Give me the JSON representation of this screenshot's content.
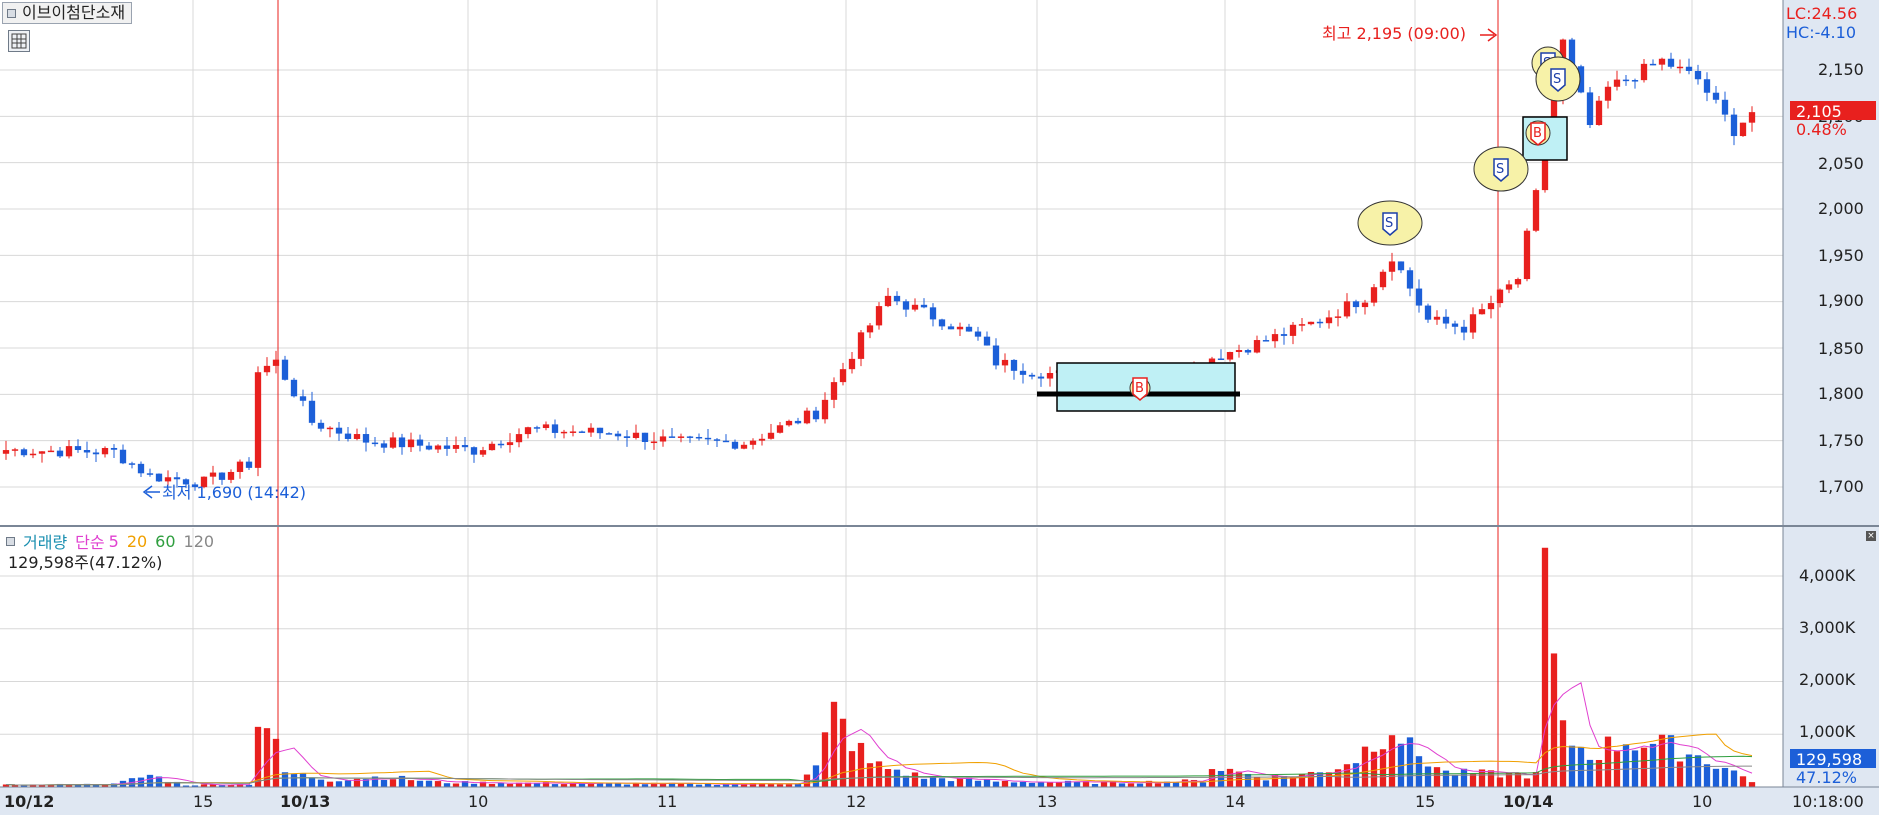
{
  "app": {
    "stock_name": "이브이첨단소재"
  },
  "price_axis": {
    "ticks": [
      "2,150",
      "2,100",
      "2,050",
      "2,000",
      "1,950",
      "1,900",
      "1,850",
      "1,800",
      "1,750",
      "1,700"
    ],
    "lc_label": "LC:24.56",
    "hc_label": "HC:-4.10",
    "current_price": "2,105",
    "current_change": "0.48%"
  },
  "volume_axis": {
    "ticks": [
      "4,000K",
      "3,000K",
      "2,000K",
      "1,000K"
    ],
    "current_volume": "129,598",
    "current_ratio": "47.12%"
  },
  "time_axis": {
    "labels": [
      "10/12",
      "15",
      "10/13",
      "10",
      "11",
      "12",
      "13",
      "14",
      "15",
      "10/14",
      "10"
    ],
    "clock": "10:18:00"
  },
  "annotations": {
    "high_label": "최고 2,195 (09:00)",
    "low_label": "최저 1,690 (14:42)",
    "sell_marker": "S",
    "buy_marker": "B"
  },
  "volume_panel": {
    "title": "거래량",
    "ma_type": "단순",
    "periods": [
      "5",
      "20",
      "60",
      "120"
    ],
    "summary": "129,598주(47.12%)"
  },
  "colors": {
    "up": "#e8201e",
    "down": "#1c5fd8",
    "ma5": "#e040d0",
    "ma20": "#f0a000",
    "ma60": "#2e9e3e",
    "ma120": "#888888",
    "axis_bg": "#dfe7f2",
    "grid": "#d8d8d8",
    "marker_fill": "#f7f2a8",
    "zone_fill": "#bff0f5"
  },
  "chart_data": [
    {
      "type": "candlestick",
      "title": "이브이첨단소재",
      "interval": "intraday",
      "y_range": [
        1660,
        2195
      ],
      "x": [
        "10/12 14:00",
        "10/12 15:00",
        "10/13 09:00",
        "10/13 10:00",
        "10/13 11:00",
        "10/13 12:00",
        "10/13 13:00",
        "10/13 14:00",
        "10/13 15:00",
        "10/14 09:00",
        "10/14 10:00"
      ],
      "close": [
        1740,
        1705,
        1820,
        1745,
        1750,
        1810,
        1810,
        1835,
        1890,
        2060,
        2100
      ],
      "high": [
        1745,
        1720,
        1850,
        1800,
        1765,
        1930,
        1860,
        1870,
        1965,
        2195,
        2130
      ],
      "low": [
        1720,
        1690,
        1755,
        1725,
        1735,
        1745,
        1780,
        1805,
        1860,
        2030,
        2060
      ],
      "high_point": {
        "value": 2195,
        "time": "09:00"
      },
      "low_point": {
        "value": 1690,
        "time": "14:42"
      },
      "last_price": 2105
    },
    {
      "type": "bar",
      "title": "거래량",
      "ylabel": "",
      "y_range": [
        0,
        4500
      ],
      "unit": "K",
      "categories": [
        "10/12 14:00",
        "10/12 15:00",
        "10/13 09:00",
        "10/13 10:00",
        "10/13 11:00",
        "10/13 12:00",
        "10/13 13:00",
        "10/13 14:00",
        "10/13 15:00",
        "10/14 09:00",
        "10/14 10:00"
      ],
      "series": [
        {
          "name": "거래량",
          "values": [
            270,
            120,
            1450,
            400,
            120,
            1550,
            500,
            430,
            1350,
            4500,
            1000
          ]
        }
      ],
      "moving_averages": [
        "5",
        "20",
        "60",
        "120"
      ],
      "last_volume": 129598,
      "last_ratio_pct": 47.12
    }
  ]
}
